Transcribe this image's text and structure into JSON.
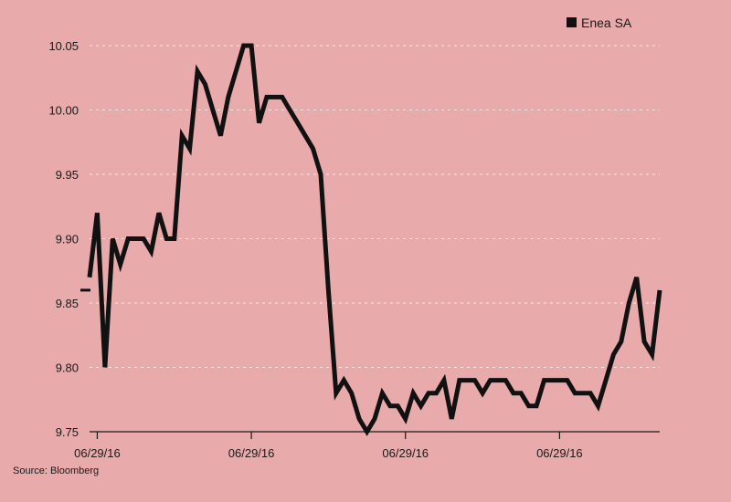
{
  "chart_data": {
    "type": "line",
    "title": "",
    "xlabel": "",
    "ylabel": "",
    "ylim": [
      9.75,
      10.05
    ],
    "yticks": [
      "10.05",
      "10.00",
      "9.95",
      "9.90",
      "9.85",
      "9.80",
      "9.75"
    ],
    "ytick_values": [
      10.05,
      10.0,
      9.95,
      9.9,
      9.85,
      9.8,
      9.75
    ],
    "xticks": [
      "06/29/16",
      "06/29/16",
      "06/29/16",
      "06/29/16"
    ],
    "xtick_indices": [
      1,
      21,
      41,
      61
    ],
    "grid": true,
    "legend_position": "top-right",
    "series": [
      {
        "name": "Enea SA",
        "color": "#111111",
        "values": [
          9.87,
          9.92,
          9.8,
          9.9,
          9.88,
          9.9,
          9.9,
          9.9,
          9.89,
          9.92,
          9.9,
          9.9,
          9.98,
          9.97,
          10.03,
          10.02,
          10.0,
          9.98,
          10.01,
          10.03,
          10.05,
          10.05,
          9.99,
          10.01,
          10.01,
          10.01,
          10.0,
          9.99,
          9.98,
          9.97,
          9.95,
          9.86,
          9.78,
          9.79,
          9.78,
          9.76,
          9.75,
          9.76,
          9.78,
          9.77,
          9.77,
          9.76,
          9.78,
          9.77,
          9.78,
          9.78,
          9.79,
          9.76,
          9.79,
          9.79,
          9.79,
          9.78,
          9.79,
          9.79,
          9.79,
          9.78,
          9.78,
          9.77,
          9.77,
          9.79,
          9.79,
          9.79,
          9.79,
          9.78,
          9.78,
          9.78,
          9.77,
          9.79,
          9.81,
          9.82,
          9.85,
          9.87,
          9.82,
          9.81,
          9.86
        ]
      }
    ],
    "reference_marker_value": 9.86,
    "source": "Source: Bloomberg"
  }
}
